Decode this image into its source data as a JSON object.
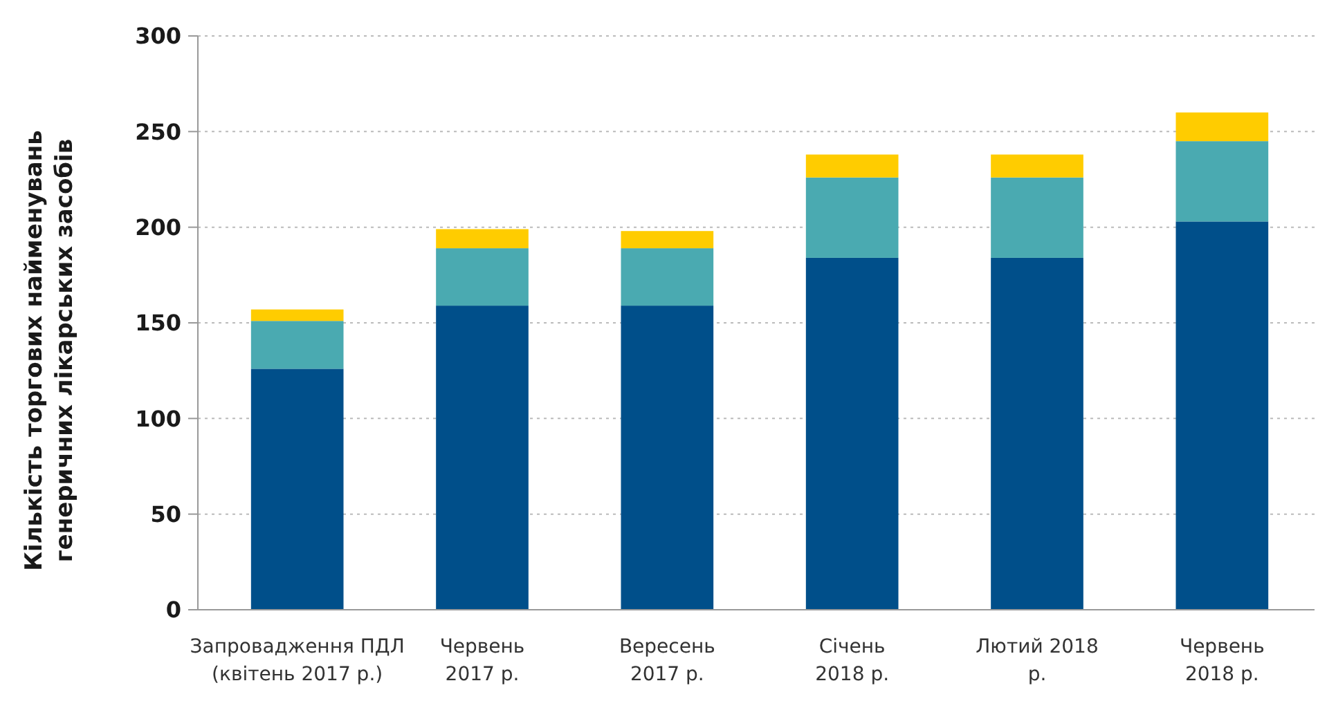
{
  "chart_data": {
    "type": "bar",
    "stacked": true,
    "ylabel": "Кількість торгових найменувань\nгенеричних лікарських засобів",
    "categories": [
      "Запровадження ПДЛ\n(квітень 2017 р.)",
      "Червень\n2017 р.",
      "Вересень\n2017 р.",
      "Січень\n2018 р.",
      "Лютий 2018\nр.",
      "Червень\n2018 р."
    ],
    "series": [
      {
        "color": "#004f8a",
        "values": [
          126,
          159,
          159,
          184,
          184,
          203
        ]
      },
      {
        "color": "#4aaab1",
        "values": [
          25,
          30,
          30,
          42,
          42,
          42
        ]
      },
      {
        "color": "#ffcc00",
        "values": [
          6,
          10,
          9,
          12,
          12,
          15
        ]
      }
    ],
    "ylim": [
      0,
      300
    ],
    "yticks": [
      0,
      50,
      100,
      150,
      200,
      250,
      300
    ],
    "grid": "y"
  }
}
